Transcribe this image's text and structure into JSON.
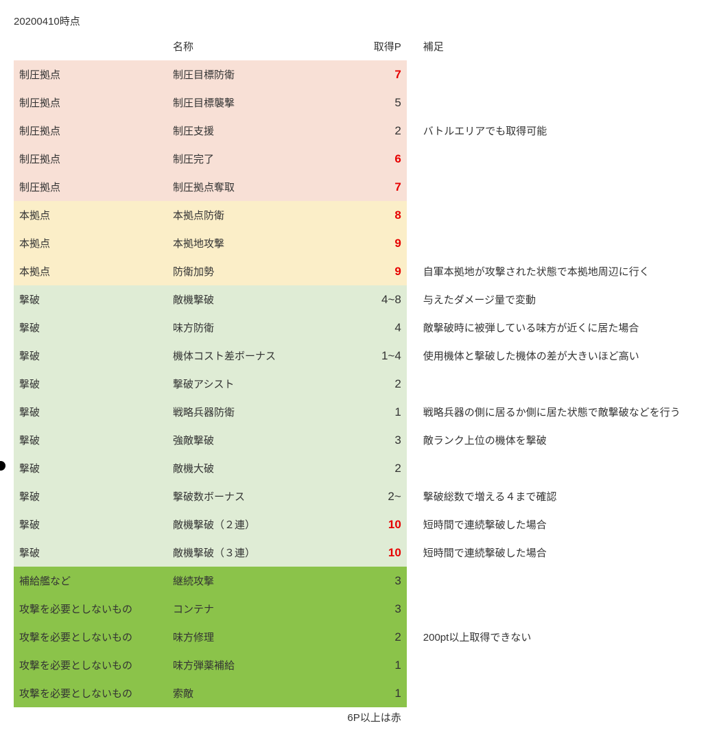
{
  "timestamp": "20200410時点",
  "headers": {
    "category": "",
    "name": "名称",
    "points": "取得P",
    "note": "補足"
  },
  "footnote": "6P以上は赤",
  "group_colors": {
    "suppress": "#f8e0d6",
    "base": "#fbeec8",
    "destroy": "#dfecd5",
    "other": "#8bc34a"
  },
  "rows": [
    {
      "group": "suppress",
      "category": "制圧拠点",
      "name": "制圧目標防衛",
      "points": "7",
      "red": true,
      "note": ""
    },
    {
      "group": "suppress",
      "category": "制圧拠点",
      "name": "制圧目標襲撃",
      "points": "5",
      "red": false,
      "note": ""
    },
    {
      "group": "suppress",
      "category": "制圧拠点",
      "name": "制圧支援",
      "points": "2",
      "red": false,
      "note": "バトルエリアでも取得可能"
    },
    {
      "group": "suppress",
      "category": "制圧拠点",
      "name": "制圧完了",
      "points": "6",
      "red": true,
      "note": ""
    },
    {
      "group": "suppress",
      "category": "制圧拠点",
      "name": "制圧拠点奪取",
      "points": "7",
      "red": true,
      "note": ""
    },
    {
      "group": "base",
      "category": "本拠点",
      "name": "本拠点防衛",
      "points": "8",
      "red": true,
      "note": ""
    },
    {
      "group": "base",
      "category": "本拠点",
      "name": "本拠地攻撃",
      "points": "9",
      "red": true,
      "note": ""
    },
    {
      "group": "base",
      "category": "本拠点",
      "name": "防衛加勢",
      "points": "9",
      "red": true,
      "note": "自軍本拠地が攻撃された状態で本拠地周辺に行く"
    },
    {
      "group": "destroy",
      "category": "撃破",
      "name": "敵機撃破",
      "points": "4~8",
      "red": false,
      "note": "与えたダメージ量で変動"
    },
    {
      "group": "destroy",
      "category": "撃破",
      "name": "味方防衛",
      "points": "4",
      "red": false,
      "note": "敵撃破時に被弾している味方が近くに居た場合"
    },
    {
      "group": "destroy",
      "category": "撃破",
      "name": "機体コスト差ボーナス",
      "points": "1~4",
      "red": false,
      "note": "使用機体と撃破した機体の差が大きいほど高い"
    },
    {
      "group": "destroy",
      "category": "撃破",
      "name": "撃破アシスト",
      "points": "2",
      "red": false,
      "note": ""
    },
    {
      "group": "destroy",
      "category": "撃破",
      "name": "戦略兵器防衛",
      "points": "1",
      "red": false,
      "note": "戦略兵器の側に居るか側に居た状態で敵撃破などを行う"
    },
    {
      "group": "destroy",
      "category": "撃破",
      "name": "強敵撃破",
      "points": "3",
      "red": false,
      "note": "敵ランク上位の機体を撃破"
    },
    {
      "group": "destroy",
      "category": "撃破",
      "name": "敵機大破",
      "points": "2",
      "red": false,
      "note": ""
    },
    {
      "group": "destroy",
      "category": "撃破",
      "name": "撃破数ボーナス",
      "points": "2~",
      "red": false,
      "note": "撃破総数で増える４まで確認"
    },
    {
      "group": "destroy",
      "category": "撃破",
      "name": "敵機撃破（２連）",
      "points": "10",
      "red": true,
      "note": "短時間で連続撃破した場合"
    },
    {
      "group": "destroy",
      "category": "撃破",
      "name": "敵機撃破（３連）",
      "points": "10",
      "red": true,
      "note": "短時間で連続撃破した場合"
    },
    {
      "group": "other",
      "category": "補給艦など",
      "name": "継続攻撃",
      "points": "3",
      "red": false,
      "note": ""
    },
    {
      "group": "other",
      "category": "攻撃を必要としないもの",
      "name": "コンテナ",
      "points": "3",
      "red": false,
      "note": ""
    },
    {
      "group": "other",
      "category": "攻撃を必要としないもの",
      "name": "味方修理",
      "points": "2",
      "red": false,
      "note": "200pt以上取得できない"
    },
    {
      "group": "other",
      "category": "攻撃を必要としないもの",
      "name": "味方弾薬補給",
      "points": "1",
      "red": false,
      "note": ""
    },
    {
      "group": "other",
      "category": "攻撃を必要としないもの",
      "name": "索敵",
      "points": "1",
      "red": false,
      "note": ""
    }
  ]
}
